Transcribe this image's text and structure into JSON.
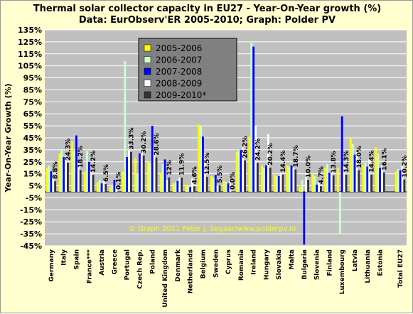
{
  "chart_data": {
    "type": "bar",
    "title": "Thermal solar collector capacity in EU27 - Year-On-Year growth (%)",
    "subtitle": "Data: EurObserv'ER 2005-2010; Graph: Polder PV",
    "ylabel": "Year-On-Year Growth (%)",
    "ylim": [
      -45,
      135
    ],
    "ytick_step": 10,
    "ytick_labels": [
      "-45%",
      "-35%",
      "-25%",
      "-15%",
      "-5%",
      "5%",
      "15%",
      "25%",
      "35%",
      "45%",
      "55%",
      "65%",
      "75%",
      "85%",
      "95%",
      "105%",
      "115%",
      "125%",
      "135%"
    ],
    "grid": true,
    "legend_position": "top-center",
    "watermark": "© Graph 2011 Peter J. Segaar/www.polderpv.nl",
    "categories": [
      "Germany",
      "Italy",
      "Spain",
      "France***",
      "Austria",
      "Greece",
      "Portugal",
      "Czech Rep.",
      "Poland",
      "United Kingdom",
      "Denmark",
      "Netherlands",
      "Belgium",
      "Sweden",
      "Cyprus",
      "Romania",
      "Ireland",
      "Hungary",
      "Slovakia",
      "Malta",
      "Bulgaria",
      "Slovenia",
      "Finland",
      "Luxembourg",
      "Latvia",
      "Lithuania",
      "Estonia",
      "Total EU27"
    ],
    "series": [
      {
        "name": "2005-2006",
        "color": "#ffff00",
        "values": [
          20,
          32,
          42,
          17,
          8,
          4,
          17,
          28,
          25,
          16,
          7,
          6,
          56,
          13,
          9,
          33,
          46,
          22,
          14,
          22,
          4,
          15,
          20,
          20,
          45,
          22,
          37,
          17
        ]
      },
      {
        "name": "2006-2007",
        "color": "#ccffcc",
        "values": [
          22,
          35,
          34,
          34,
          10,
          6,
          109,
          15,
          24,
          23,
          8,
          5,
          55,
          12,
          8,
          35,
          124,
          20,
          13,
          21,
          10,
          13,
          23,
          -35,
          40,
          24,
          32,
          19
        ]
      },
      {
        "name": "2007-2008",
        "color": "#0000ff",
        "values": [
          17,
          29,
          47,
          25,
          7,
          10,
          29,
          32,
          55,
          27,
          9,
          4,
          46,
          14,
          7,
          35,
          121,
          22,
          13,
          22,
          -44,
          6,
          16,
          63,
          31,
          21,
          20,
          18
        ]
      },
      {
        "name": "2008-2009",
        "color": "#ffffff",
        "values": [
          12,
          30,
          24,
          18,
          9,
          5,
          40,
          37,
          36,
          10,
          12,
          11,
          32,
          5,
          10,
          37,
          55,
          48,
          15,
          20,
          16,
          9,
          19,
          21,
          33,
          27,
          22,
          22
        ]
      },
      {
        "name": "2009-2010*",
        "color": "#333333",
        "values": [
          8.8,
          24.3,
          18.2,
          14.2,
          6.5,
          0.1,
          33.3,
          30.2,
          28.6,
          12,
          11.9,
          4.6,
          12.5,
          5.5,
          0,
          26.2,
          24.2,
          20.2,
          14.4,
          18.7,
          10,
          4.7,
          13.8,
          14.3,
          18,
          14.4,
          16.1,
          10.2
        ]
      }
    ],
    "data_labels": [
      {
        "category": "Germany",
        "text": "8.8%"
      },
      {
        "category": "Italy",
        "text": "24.3%"
      },
      {
        "category": "Spain",
        "text": "18.2%"
      },
      {
        "category": "France***",
        "text": "14.2%"
      },
      {
        "category": "Austria",
        "text": "6.5%"
      },
      {
        "category": "Greece",
        "text": "0.1%"
      },
      {
        "category": "Portugal",
        "text": "33.3%"
      },
      {
        "category": "Czech Rep.",
        "text": "30.2%"
      },
      {
        "category": "Poland",
        "text": "28.6%"
      },
      {
        "category": "United Kingdom",
        "text": "12%"
      },
      {
        "category": "Denmark",
        "text": "11.9%"
      },
      {
        "category": "Netherlands",
        "text": "4.6%"
      },
      {
        "category": "Belgium",
        "text": "12.5%"
      },
      {
        "category": "Sweden",
        "text": "5.5%"
      },
      {
        "category": "Cyprus",
        "text": "0.0%"
      },
      {
        "category": "Romania",
        "text": "26.2%"
      },
      {
        "category": "Ireland",
        "text": "24.2%"
      },
      {
        "category": "Hungary",
        "text": "20.2%"
      },
      {
        "category": "Slovakia",
        "text": "14.4%"
      },
      {
        "category": "Malta",
        "text": "18.7%"
      },
      {
        "category": "Bulgaria",
        "text": "10.0%"
      },
      {
        "category": "Slovenia",
        "text": "4.7%"
      },
      {
        "category": "Finland",
        "text": "13.8%"
      },
      {
        "category": "Luxembourg",
        "text": "14.3%"
      },
      {
        "category": "Latvia",
        "text": "18.0%"
      },
      {
        "category": "Lithuania",
        "text": "14.4%"
      },
      {
        "category": "Estonia",
        "text": "16.1%"
      },
      {
        "category": "Total EU27",
        "text": "10.2%"
      }
    ],
    "colors": {
      "plot_background": "#c0c0c0",
      "outer_background": "#ffffd0",
      "legend_background": "#808080",
      "gridline": "#ffffff",
      "watermark": "#ffff00"
    }
  }
}
